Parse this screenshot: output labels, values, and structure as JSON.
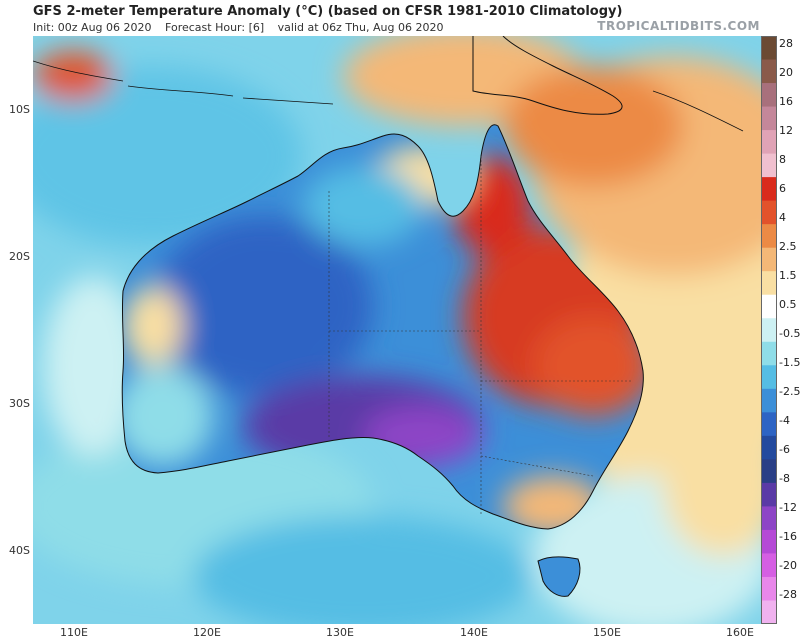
{
  "header": {
    "title": "GFS 2-meter Temperature Anomaly (°C) (based on CFSR 1981-2010 Climatology)",
    "init": "Init: 00z Aug 06 2020",
    "forecast_hour": "Forecast Hour: [6]",
    "valid": "valid at 06z Thu, Aug 06 2020",
    "brand": "TROPICALTIDBITS.COM"
  },
  "axes": {
    "lat_labels": [
      "10S",
      "20S",
      "30S",
      "40S"
    ],
    "lon_labels": [
      "110E",
      "120E",
      "130E",
      "140E",
      "150E",
      "160E"
    ]
  },
  "colorbar": {
    "labels": [
      "28",
      "20",
      "16",
      "12",
      "8",
      "6",
      "4",
      "2.5",
      "1.5",
      "0.5",
      "-0.5",
      "-1.5",
      "-2.5",
      "-4",
      "-6",
      "-8",
      "-12",
      "-16",
      "-20",
      "-28"
    ],
    "colors": [
      "#6b4a33",
      "#8a5a4a",
      "#a8707c",
      "#c4879a",
      "#e0a3b6",
      "#f0c0cf",
      "#d92b1c",
      "#e2522b",
      "#ec8a45",
      "#f4b877",
      "#f9dfa3",
      "#ffffff",
      "#cdf1f3",
      "#8fdde8",
      "#55bde4",
      "#3c8fd8",
      "#2d64c4",
      "#234a9e",
      "#2a3f86",
      "#5a3aa6",
      "#8d45c6",
      "#b54ad6",
      "#d55fe3",
      "#e887ea",
      "#f0b2ef"
    ],
    "colors_note": ""
  },
  "map": {
    "region": "Australia",
    "ocean_color": "#7fd3ea",
    "cold_core_color": "#2e56b8",
    "warm_core_color": "#d73b22"
  }
}
